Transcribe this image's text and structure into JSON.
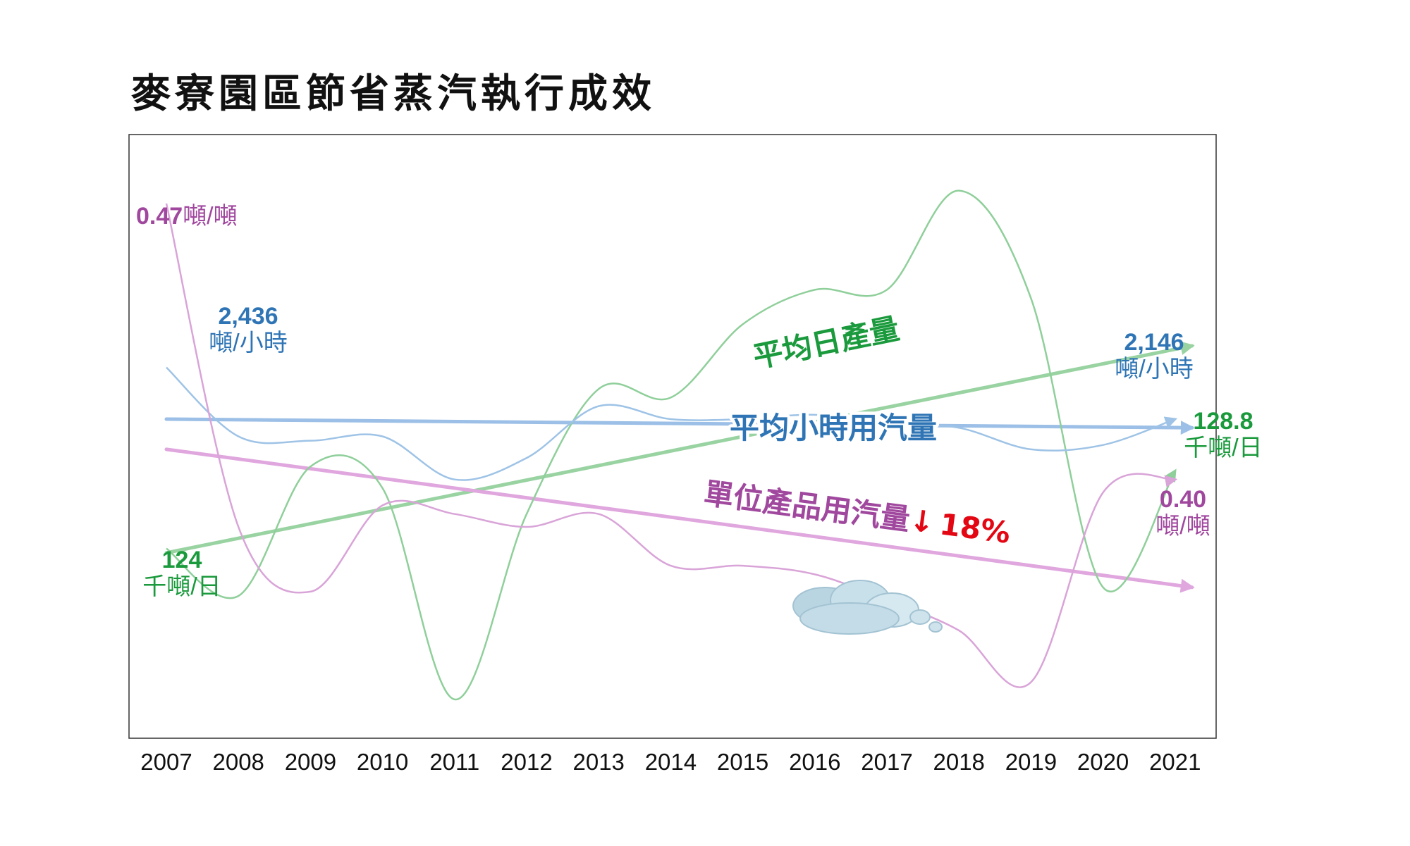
{
  "title": "麥寮園區節省蒸汽執行成效",
  "colors": {
    "green": "#1a9a3c",
    "green_line": "#8fcf9a",
    "green_trend": "#99d3a2",
    "blue": "#2f75b5",
    "blue_line": "#9ec3e6",
    "blue_trend": "#9bbfe6",
    "purple": "#a0479e",
    "purple_line": "#d9a4d8",
    "purple_trend": "#e0a6de",
    "red": "#e30613",
    "frame": "#333333"
  },
  "chart_data": {
    "type": "line",
    "x": [
      "2007",
      "2008",
      "2009",
      "2010",
      "2011",
      "2012",
      "2013",
      "2014",
      "2015",
      "2016",
      "2017",
      "2018",
      "2019",
      "2020",
      "2021"
    ],
    "series": [
      {
        "name": "平均日產量",
        "relative_values": [
          0.44,
          0.33,
          0.63,
          0.58,
          0.09,
          0.52,
          0.81,
          0.79,
          0.96,
          1.04,
          1.04,
          1.27,
          1.02,
          0.35,
          0.62
        ],
        "color_key": "green"
      },
      {
        "name": "平均小時用汽量",
        "relative_values": [
          0.86,
          0.7,
          0.69,
          0.7,
          0.6,
          0.65,
          0.77,
          0.74,
          0.74,
          0.75,
          0.73,
          0.72,
          0.67,
          0.68,
          0.74
        ],
        "color_key": "blue"
      },
      {
        "name": "單位產品用汽量",
        "relative_values": [
          1.24,
          0.49,
          0.34,
          0.54,
          0.52,
          0.49,
          0.52,
          0.4,
          0.4,
          0.38,
          0.32,
          0.25,
          0.13,
          0.57,
          0.6
        ],
        "color_key": "purple"
      }
    ],
    "trend_lines": [
      {
        "name": "平均日產量",
        "label": "平均日產量",
        "from": 0.43,
        "to": 0.91,
        "color_key": "green_trend"
      },
      {
        "name": "平均小時用汽量",
        "label": "平均小時用汽量",
        "from": 0.74,
        "to": 0.72,
        "color_key": "blue_trend"
      },
      {
        "name": "單位產品用汽量",
        "label": "單位產品用汽量",
        "change_arrow": "↓",
        "change_pct": "18%",
        "from": 0.67,
        "to": 0.35,
        "color_key": "purple_trend"
      }
    ],
    "annotations": {
      "purple_start": {
        "value": "0.47",
        "unit": "噸/噸"
      },
      "purple_end": {
        "value": "0.40",
        "unit": "噸/噸"
      },
      "blue_start": {
        "value": "2,436",
        "unit": "噸/小時"
      },
      "blue_end": {
        "value": "2,146",
        "unit": "噸/小時"
      },
      "green_start": {
        "value": "124",
        "unit": "千噸/日"
      },
      "green_end": {
        "value": "128.8",
        "unit": "千噸/日"
      }
    },
    "ylim": [
      0,
      1.4
    ],
    "grid": false,
    "legend": "none"
  }
}
